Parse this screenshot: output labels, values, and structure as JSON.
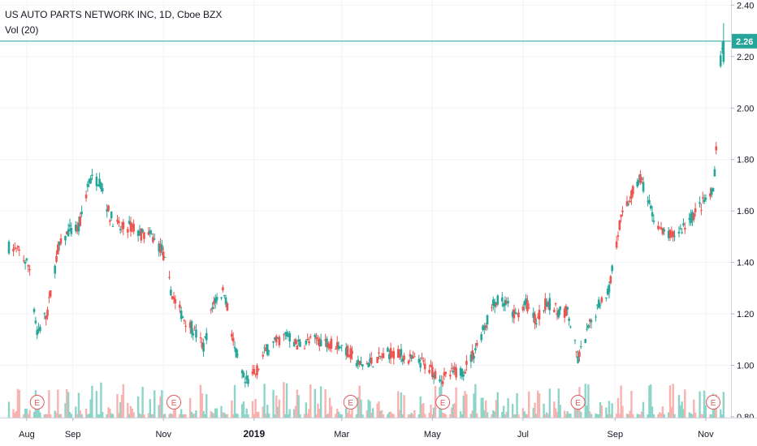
{
  "legend": {
    "symbol_line": "US AUTO PARTS NETWORK INC, 1D, Cboe BZX",
    "volume_line": "Vol (20)"
  },
  "colors": {
    "up": "#26a69a",
    "down": "#ef5350",
    "up_volume": "#8ed5c9",
    "down_volume": "#f8b2b0",
    "price_line": "#26a69a",
    "earnings": "#e05a5a",
    "grid": "#f0f3fa",
    "axis_text": "#131722"
  },
  "chart_data": {
    "type": "candlestick",
    "title": "US AUTO PARTS NETWORK INC, 1D, Cboe BZX",
    "y_axis": {
      "position": "right",
      "ticks": [
        "2.40",
        "2.20",
        "2.00",
        "1.80",
        "1.60",
        "1.40",
        "1.20",
        "1.00",
        "0.80"
      ],
      "range": [
        0.8,
        2.42
      ]
    },
    "x_axis": {
      "ticks": [
        "Aug",
        "Sep",
        "Nov",
        "2019",
        "Mar",
        "May",
        "Jul",
        "Sep",
        "Nov"
      ],
      "bold_ticks": [
        "2019"
      ]
    },
    "last_price": {
      "value": 2.26,
      "label": "2.26"
    },
    "earnings_markers": [
      {
        "label": "E",
        "date": "2018-08-08"
      },
      {
        "label": "E",
        "date": "2018-11-08"
      },
      {
        "label": "E",
        "date": "2019-03-07"
      },
      {
        "label": "E",
        "date": "2019-05-08"
      },
      {
        "label": "E",
        "date": "2019-08-07"
      },
      {
        "label": "E",
        "date": "2019-11-06"
      }
    ],
    "series": [
      {
        "name": "",
        "type": "line",
        "close": [
          [
            "2018-07-20",
            1.46
          ],
          [
            "2018-07-27",
            1.44
          ],
          [
            "2018-08-03",
            1.38
          ],
          [
            "2018-08-08",
            1.12
          ],
          [
            "2018-08-15",
            1.21
          ],
          [
            "2018-08-22",
            1.45
          ],
          [
            "2018-08-29",
            1.52
          ],
          [
            "2018-09-05",
            1.53
          ],
          [
            "2018-09-12",
            1.72
          ],
          [
            "2018-09-19",
            1.72
          ],
          [
            "2018-09-26",
            1.58
          ],
          [
            "2018-10-03",
            1.53
          ],
          [
            "2018-10-10",
            1.54
          ],
          [
            "2018-10-17",
            1.51
          ],
          [
            "2018-10-24",
            1.5
          ],
          [
            "2018-10-31",
            1.45
          ],
          [
            "2018-11-07",
            1.27
          ],
          [
            "2018-11-14",
            1.19
          ],
          [
            "2018-11-21",
            1.14
          ],
          [
            "2018-11-28",
            1.07
          ],
          [
            "2018-12-05",
            1.25
          ],
          [
            "2018-12-12",
            1.29
          ],
          [
            "2018-12-19",
            1.06
          ],
          [
            "2018-12-26",
            0.93
          ],
          [
            "2019-01-02",
            0.97
          ],
          [
            "2019-01-09",
            1.06
          ],
          [
            "2019-01-16",
            1.09
          ],
          [
            "2019-01-23",
            1.12
          ],
          [
            "2019-01-30",
            1.08
          ],
          [
            "2019-02-06",
            1.09
          ],
          [
            "2019-02-13",
            1.1
          ],
          [
            "2019-02-20",
            1.09
          ],
          [
            "2019-02-27",
            1.08
          ],
          [
            "2019-03-06",
            1.05
          ],
          [
            "2019-03-13",
            1.0
          ],
          [
            "2019-03-20",
            1.01
          ],
          [
            "2019-03-27",
            1.03
          ],
          [
            "2019-04-03",
            1.05
          ],
          [
            "2019-04-10",
            1.04
          ],
          [
            "2019-04-17",
            1.02
          ],
          [
            "2019-04-24",
            1.01
          ],
          [
            "2019-05-01",
            0.98
          ],
          [
            "2019-05-08",
            0.95
          ],
          [
            "2019-05-15",
            0.97
          ],
          [
            "2019-05-22",
            0.98
          ],
          [
            "2019-05-29",
            1.05
          ],
          [
            "2019-06-05",
            1.15
          ],
          [
            "2019-06-12",
            1.25
          ],
          [
            "2019-06-19",
            1.24
          ],
          [
            "2019-06-26",
            1.19
          ],
          [
            "2019-07-03",
            1.24
          ],
          [
            "2019-07-10",
            1.17
          ],
          [
            "2019-07-17",
            1.25
          ],
          [
            "2019-07-24",
            1.21
          ],
          [
            "2019-07-31",
            1.21
          ],
          [
            "2019-08-07",
            1.02
          ],
          [
            "2019-08-14",
            1.14
          ],
          [
            "2019-08-21",
            1.24
          ],
          [
            "2019-08-28",
            1.3
          ],
          [
            "2019-09-04",
            1.55
          ],
          [
            "2019-09-11",
            1.65
          ],
          [
            "2019-09-18",
            1.73
          ],
          [
            "2019-09-25",
            1.6
          ],
          [
            "2019-10-02",
            1.52
          ],
          [
            "2019-10-09",
            1.5
          ],
          [
            "2019-10-16",
            1.53
          ],
          [
            "2019-10-23",
            1.58
          ],
          [
            "2019-10-30",
            1.63
          ],
          [
            "2019-11-06",
            1.67
          ],
          [
            "2019-11-08",
            1.85
          ],
          [
            "2019-11-11",
            2.18
          ],
          [
            "2019-11-13",
            2.26
          ]
        ]
      }
    ]
  }
}
